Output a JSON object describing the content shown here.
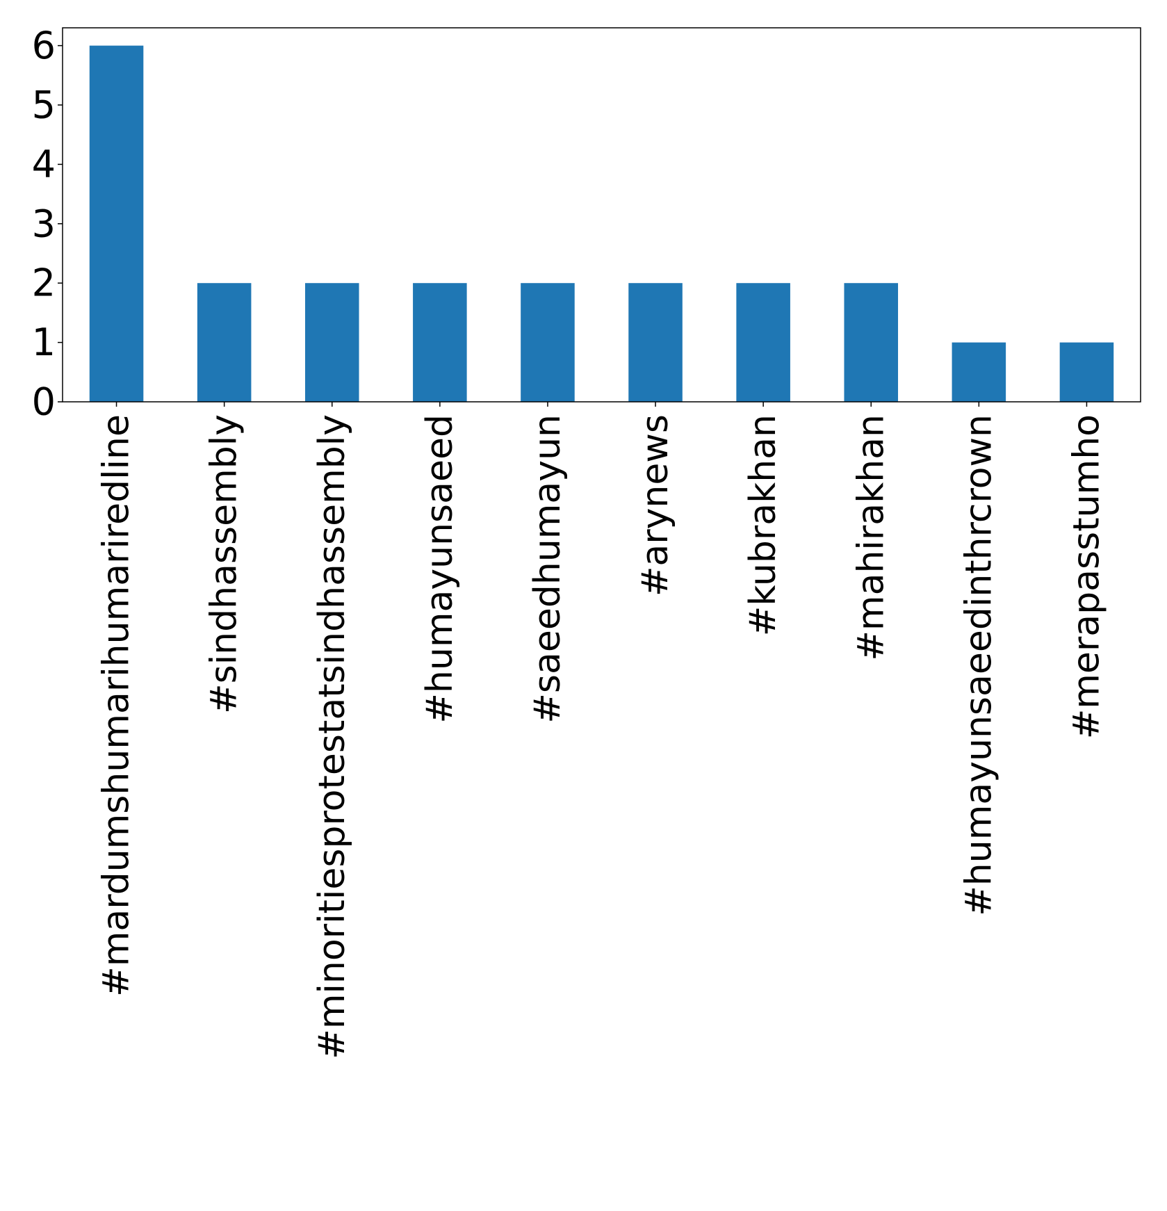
{
  "chart_data": {
    "type": "bar",
    "categories": [
      "#mardumshumarihumariredline",
      "#sindhassembly",
      "#minoritiesprotestatsindhassembly",
      "#humayunsaeed",
      "#saeedhumayun",
      "#arynews",
      "#kubrakhan",
      "#mahirakhan",
      "#humayunsaeedinthrcrown",
      "#merapasstumho"
    ],
    "values": [
      6,
      2,
      2,
      2,
      2,
      2,
      2,
      2,
      1,
      1
    ],
    "yticks": [
      0,
      1,
      2,
      3,
      4,
      5,
      6
    ],
    "ylim": [
      0,
      6.3
    ],
    "grid": false,
    "legend": "none",
    "colors": {
      "bar": "#1f77b4",
      "axis": "#000000",
      "background": "#ffffff"
    }
  }
}
